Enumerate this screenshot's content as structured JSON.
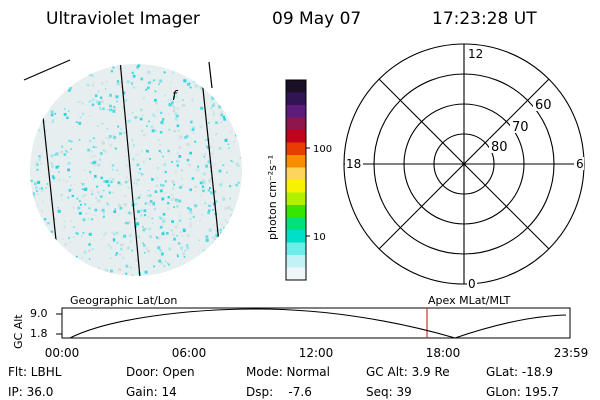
{
  "header": {
    "instrument": "Ultraviolet Imager",
    "date": "09 May 07",
    "time": "17:23:28 UT"
  },
  "image_panel": {
    "glyph": "f",
    "speckle_color": "#1fd3dc"
  },
  "colorbar": {
    "unit_label": "photon cm⁻²s⁻¹",
    "tick_labels": [
      "100",
      "10"
    ],
    "colors": [
      "#1a0f25",
      "#311552",
      "#5b1c7c",
      "#8e164a",
      "#c4001a",
      "#e93c00",
      "#f68e00",
      "#fdd55c",
      "#f7f200",
      "#b1f100",
      "#36e600",
      "#00e07c",
      "#00e0c9",
      "#6dede7",
      "#c2f1f6",
      "#eef6f8"
    ]
  },
  "polar_plot": {
    "mlt_labels": {
      "top": "12",
      "left": "18",
      "right": "6",
      "bottom": "0"
    },
    "lat_labels": [
      "60",
      "70",
      "80"
    ]
  },
  "timeline": {
    "ylabel": "GC Alt",
    "y_ticks": [
      "9.0",
      "1.8"
    ],
    "left_title": "Geographic Lat/Lon",
    "right_title": "Apex MLat/MLT",
    "x_ticks": [
      "00:00",
      "06:00",
      "12:00",
      "18:00",
      "23:59"
    ],
    "marker_color": "#c0392b",
    "marker_time": "17:23:28"
  },
  "status": {
    "rows": [
      [
        "Flt: LBHL",
        "Door: Open",
        "Mode: Normal",
        "GC Alt: 3.9 Re",
        "GLat: -18.9"
      ],
      [
        "IP: 36.0",
        "Gain: 14",
        "Dsp:    -7.6",
        "Seq: 39",
        "GLon: 195.7"
      ]
    ]
  }
}
